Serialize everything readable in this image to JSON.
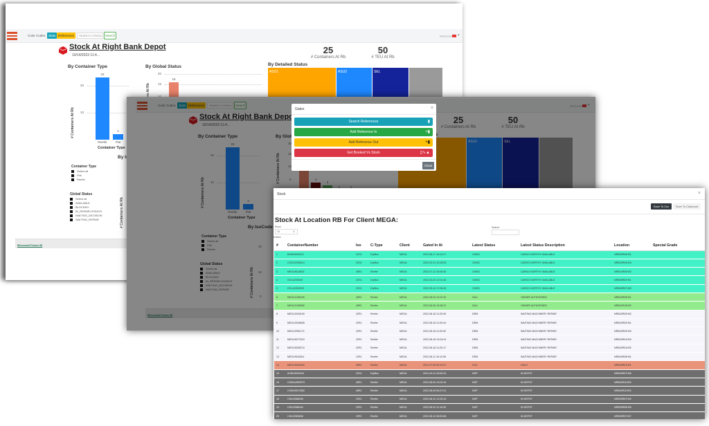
{
  "dashboard": {
    "color_codes_label": "Color Codes:",
    "stats_badge": "Stats",
    "references_badge": "References",
    "search_placeholder": "SEARCH CONTAI",
    "search_button": "Search",
    "user_label": "Welcome",
    "title": "Stock At Right Bank Depot",
    "date": "10/14/2023 11:4...",
    "logo_text": "MEGA",
    "kpis": [
      {
        "value": "25",
        "label": "# Containers At Rb"
      },
      {
        "value": "50",
        "label": "# TEU At Rb"
      }
    ],
    "container_type_chart": {
      "title": "By Container Type",
      "ylabel": "# Containers At Rb",
      "xlabel": "Container Type",
      "ticks": [
        "20",
        "10"
      ],
      "categories": [
        "Reefer",
        "Flat"
      ],
      "values": [
        23,
        2
      ],
      "value_labels": [
        "23",
        "2"
      ]
    },
    "global_status_chart": {
      "title": "By Global Status",
      "ylabel": "# Containers At Rb",
      "ticks": [
        "20",
        "15",
        "10",
        "5"
      ],
      "values": [
        16,
        4,
        3,
        1,
        1
      ],
      "value_labels": [
        "16",
        "4",
        "3",
        "1",
        "1"
      ],
      "colors": [
        "#e8826a",
        "#6b0d0d",
        "#59b45a",
        "#888888",
        "#888888"
      ]
    },
    "detailed_status": {
      "title": "By Detailed Status",
      "tiles": [
        {
          "label": "ASU1",
          "color": "#ffa500"
        },
        {
          "label": "ASU2",
          "color": "#1e88ff"
        },
        {
          "label": "SEL",
          "color": "#14239a"
        }
      ]
    },
    "isocode_chart": {
      "title": "By IsoCode",
      "ylabel": "# Containers At Rb",
      "ticks": [
        "20",
        "10",
        "0"
      ]
    },
    "filters": {
      "container_type": {
        "title": "Container Type",
        "items": [
          "Select all",
          "Flat",
          "Reefer"
        ]
      },
      "global_status": {
        "title": "Global Status",
        "items": [
          "Select all",
          "AVAILABLE",
          "BLOCKED",
          "IN_REPAIR>20DAYS",
          "WAITING_DECISION",
          "WAITING_REPAIR"
        ]
      }
    },
    "footer": "Microsoft Power BI"
  },
  "gates_modal": {
    "title": "Gates",
    "buttons": [
      {
        "label": "Search References",
        "color": "#17a2b8",
        "text": "#ffffff"
      },
      {
        "label": "Add Reference In",
        "color": "#28a745",
        "text": "#ffffff"
      },
      {
        "label": "Add Reference Out",
        "color": "#ffc107",
        "text": "#333333"
      },
      {
        "label": "Get Booked Vs Stock",
        "color": "#dc3545",
        "text": "#ffffff"
      }
    ],
    "close": "Close"
  },
  "stock_modal": {
    "title": "Stock",
    "save_csv": "Save To Csv",
    "save_clipboard": "Save To Clipboard",
    "heading": "Stock At Location RB For Client MEGA:",
    "show_label": "Show",
    "show_value": "10",
    "entries_label": "entries",
    "search_label": "Search:",
    "columns": [
      "#",
      "ContainerNumber",
      "Iso",
      "C-Type",
      "Client",
      "Gated In At",
      "Latest Status",
      "Latest Status Description",
      "Location",
      "Special Grade"
    ],
    "status_colors": {
      "CWSD": "#42f2c6",
      "DAU": "#92ec8e",
      "DRM": "#f5f5fb",
      "HLD": "#e9937a",
      "NOP": "#6e6e6e"
    },
    "rows": [
      [
        "1",
        "BOBU0000221",
        "22G1",
        "DryBox",
        "MEGA",
        "2022-08-17 16:13:17",
        "CWSD",
        "CARGO WORTHY AVAILABLE",
        "NRB00R09H01",
        ""
      ],
      [
        "2",
        "COOU2205014",
        "22G1",
        "DryBox",
        "MEGA",
        "2022-02-01 10:28:53",
        "CWSD",
        "CARGO WORTHY AVAILABLE",
        "NRB15R04H04",
        ""
      ],
      [
        "3",
        "MEGU6118632",
        "45R1",
        "Reefer",
        "MEGA",
        "2022-07-13 15:56:30",
        "CWSD",
        "CARGO WORTHY AVAILABLE",
        "NRB14R00H02",
        ""
      ],
      [
        "4",
        "OOLU293549",
        "22G1",
        "DryBox",
        "MEGA",
        "2022-03-03 12:01:45",
        "CWSD",
        "CARGO WORTHY AVAILABLE",
        "NRB05R02H01",
        ""
      ],
      [
        "5",
        "OOLU2903029",
        "22G1",
        "DryBox",
        "MEGA",
        "2022-05-19 17:08:26",
        "CWSD",
        "CARGO WORTHY AVAILABLE",
        "NRB45R07H05",
        ""
      ],
      [
        "6",
        "MEGU1258445",
        "45R1",
        "Reefer",
        "MEGA",
        "2022-08-03 14:22:32",
        "DAU",
        "OWNER AUTHORISED",
        "NRB42R09H01",
        ""
      ],
      [
        "7",
        "MEGU1306982",
        "45R1",
        "Reefer",
        "MEGA",
        "2022-08-05 15:35:21",
        "DAU",
        "OWNER AUTHORISED",
        "NRB42R10H02",
        ""
      ],
      [
        "8",
        "MEGU2943100",
        "22R1",
        "Reefer",
        "MEGA",
        "2022-08-18 11:25:26",
        "DRM",
        "WAITING MACHINERY REPAIR",
        "NRB42R02H02",
        ""
      ],
      [
        "9",
        "MEGU2945838",
        "22R1",
        "Reefer",
        "MEGA",
        "2022-08-18 11:00:44",
        "DRM",
        "WAITING MACHINERY REPAIR",
        "NRB42R02H01",
        ""
      ],
      [
        "10",
        "MEGU2951173",
        "22R1",
        "Reefer",
        "MEGA",
        "2022-08-18 11:00:52",
        "DRM",
        "WAITING MACHINERY REPAIR",
        "NRB42R02H03",
        ""
      ],
      [
        "11",
        "MEGU5272319",
        "22R1",
        "Reefer",
        "MEGA",
        "2022-08-18 13:04:24",
        "DRM",
        "WAITING MACHINERY REPAIR",
        "NRB42R01H03",
        ""
      ],
      [
        "12",
        "MEGU5308710",
        "22R1",
        "Reefer",
        "MEGA",
        "2022-08-18 11:25:17",
        "DRM",
        "WAITING MACHINERY REPAIR",
        "NRB42R01H02",
        ""
      ],
      [
        "13",
        "MEGU9162611",
        "12R1",
        "Reefer",
        "MEGA",
        "2022-08-11 16:12:59",
        "DRM",
        "WAITING MACHINERY REPAIR",
        "NRB44R05H01",
        ""
      ],
      [
        "14",
        "MEGU0003030",
        "45R1",
        "Reefer",
        "MEGA",
        "2021-07-05 09:10:07",
        "HLD",
        "HOLD",
        "NRB03R01H01",
        ""
      ],
      [
        "15",
        "ACBU9003244",
        "22G1",
        "DryBox",
        "MEGA",
        "2021-04-13 16:50:24",
        "NOP",
        "IN DEPOT",
        "NRB45R07H06",
        ""
      ],
      [
        "16",
        "CGMU4993979",
        "45R1",
        "Reefer",
        "MEGA",
        "2022-08-04 13:02:44",
        "NOP",
        "IN DEPOT",
        "NRB44R11H05",
        ""
      ],
      [
        "17",
        "CGMU5017652",
        "45R1",
        "Reefer",
        "MEGA",
        "2022-08-05 06:37:41",
        "NOP",
        "IN DEPOT",
        "NRB44R11H03",
        ""
      ],
      [
        "18",
        "CIDU2988435",
        "22R1",
        "Reefer",
        "MEGA",
        "2022-08-12 13:33:15",
        "NOP",
        "IN DEPOT",
        "NRB29R07H02",
        ""
      ],
      [
        "19",
        "CIDU2988440",
        "22R1",
        "Reefer",
        "MEGA",
        "2022-08-02 11:16:26",
        "NOP",
        "IN DEPOT",
        "NRB30R05H06",
        ""
      ],
      [
        "20",
        "CIDU2989608",
        "22R1",
        "Reefer",
        "MEGA",
        "2022-08-10 08:53:58",
        "NOP",
        "IN DEPOT",
        "NRB30R07H07",
        ""
      ]
    ]
  }
}
